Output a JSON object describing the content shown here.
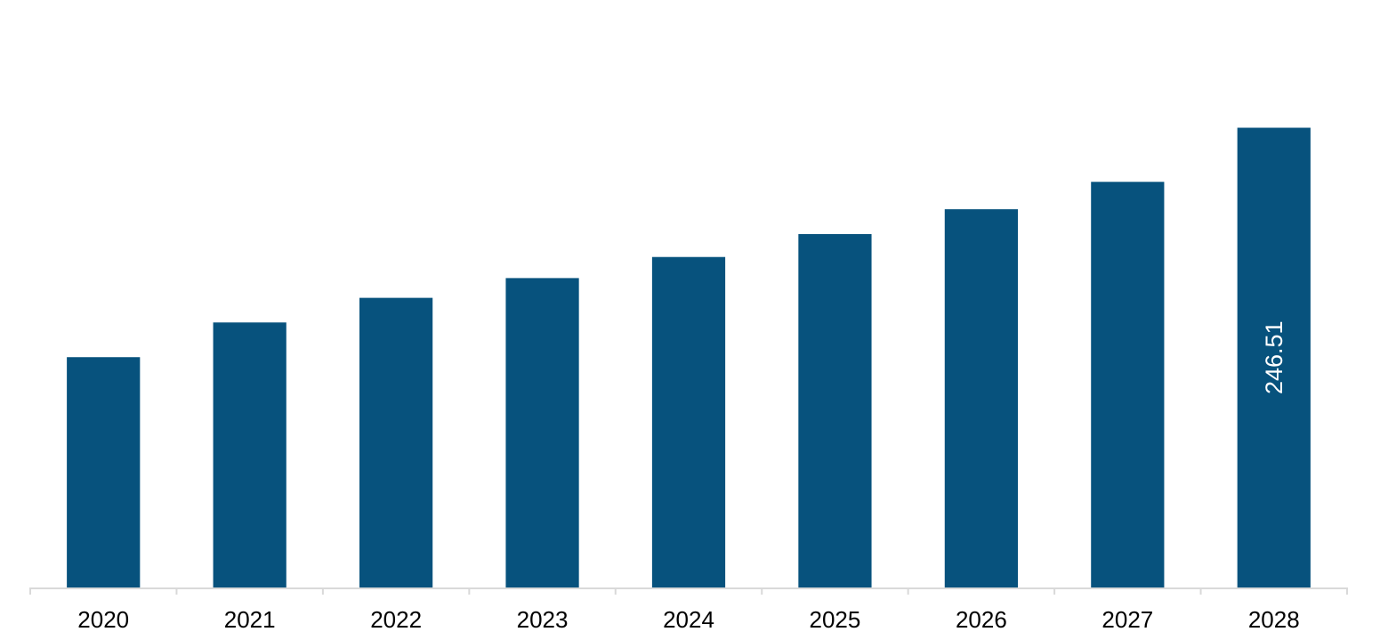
{
  "chart_data": {
    "type": "bar",
    "title": "",
    "xlabel": "",
    "ylabel": "",
    "categories": [
      "2020",
      "2021",
      "2022",
      "2023",
      "2024",
      "2025",
      "2026",
      "2027",
      "2028"
    ],
    "values": [
      123.5,
      142.1,
      155.3,
      165.9,
      177.2,
      189.5,
      202.8,
      217.5,
      246.51
    ],
    "data_labels": [
      "",
      "",
      "",
      "",
      "",
      "",
      "",
      "",
      "246.51"
    ],
    "ylim": [
      0,
      315
    ],
    "grid": false,
    "legend": "none",
    "bar_color": "#07527d",
    "axis_color": "#d9d9d9",
    "label_color": "#ffffff",
    "tick_label_color": "#000000"
  }
}
